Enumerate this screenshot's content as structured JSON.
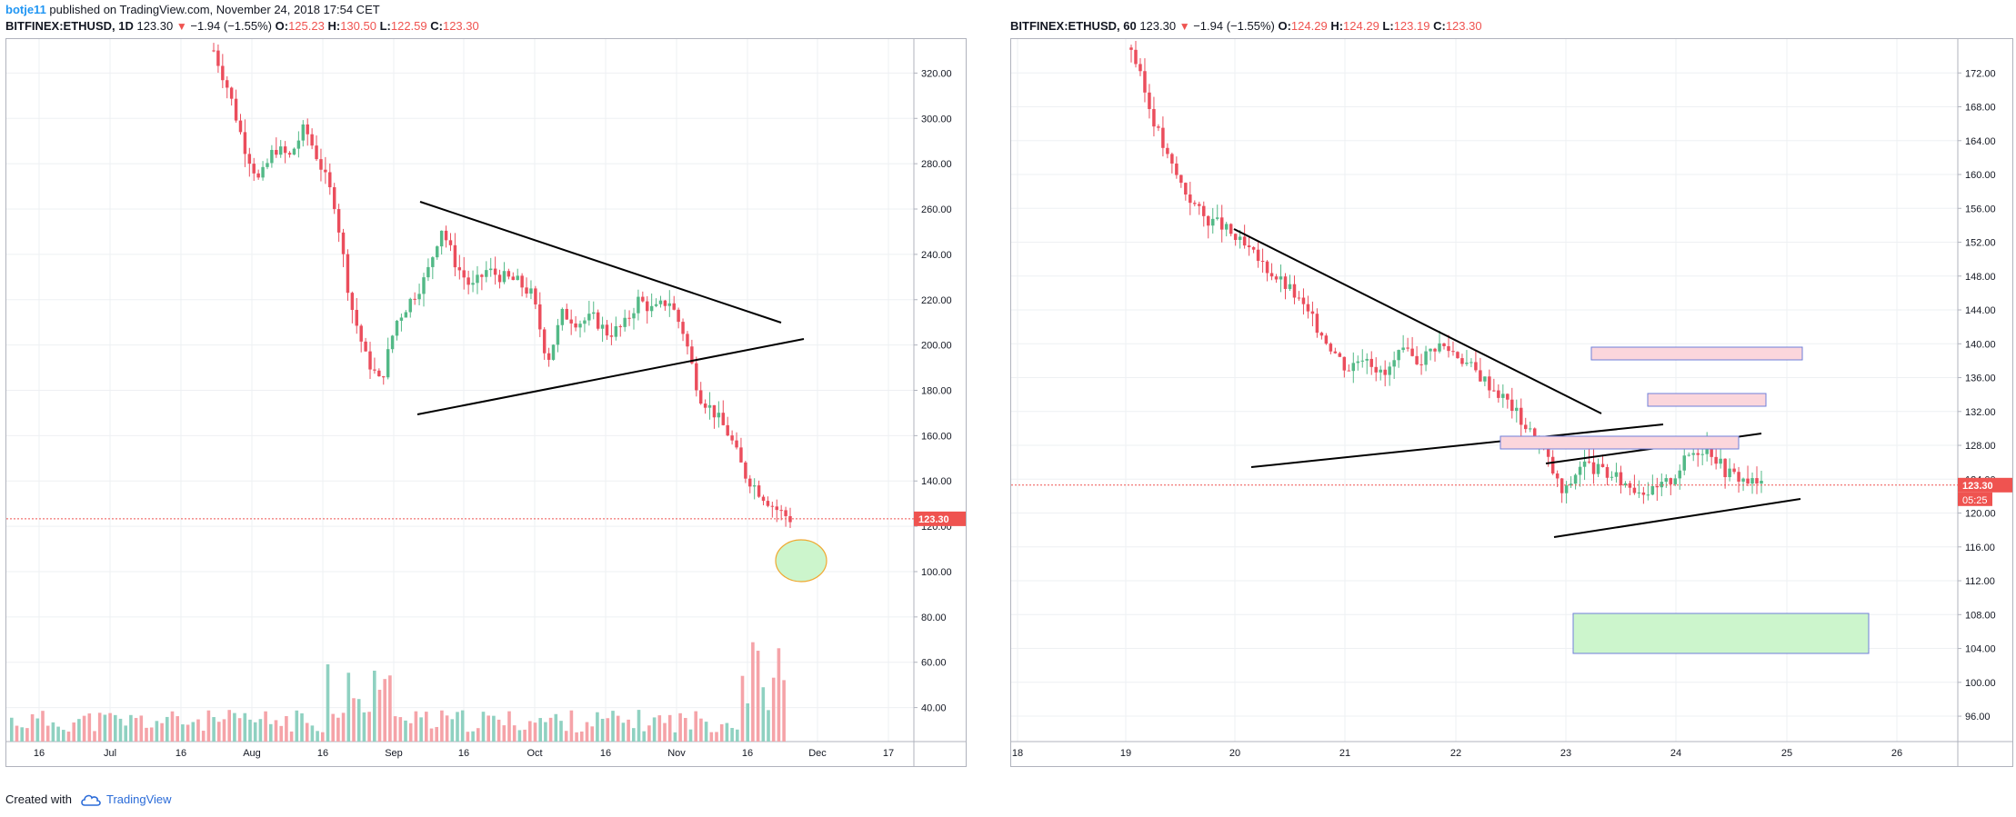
{
  "header": {
    "user": "botje11",
    "published": "published on TradingView.com, November 24, 2018 17:54 CET"
  },
  "footer": {
    "created_with": "Created with",
    "brand": "TradingView"
  },
  "colors": {
    "up": "#53b987",
    "down": "#eb4d5c",
    "vol_up": "#8fd1c1",
    "vol_down": "#f5a3a8",
    "line": "#000000",
    "price_line": "#ef5350",
    "grid": "#eef0f3"
  },
  "charts": [
    {
      "id": "daily",
      "symbol": "BITFINEX:ETHUSD, 1D",
      "last": "123.30",
      "change": "−1.94 (−1.55%)",
      "open": "125.23",
      "high": "130.50",
      "low": "122.59",
      "close": "123.30",
      "price_label": "123.30",
      "y_ticks": [
        "320.00",
        "300.00",
        "280.00",
        "260.00",
        "240.00",
        "220.00",
        "200.00",
        "180.00",
        "160.00",
        "140.00",
        "120.00",
        "100.00",
        "80.00",
        "60.00",
        "40.00"
      ],
      "x_ticks": [
        "16",
        "Jul",
        "16",
        "Aug",
        "16",
        "Sep",
        "16",
        "Oct",
        "16",
        "Nov",
        "16",
        "Dec",
        "17"
      ]
    },
    {
      "id": "hourly",
      "symbol": "BITFINEX:ETHUSD, 60",
      "last": "123.30",
      "change": "−1.94 (−1.55%)",
      "open": "124.29",
      "high": "124.29",
      "low": "123.19",
      "close": "123.30",
      "price_label": "123.30",
      "countdown": "05:25",
      "y_ticks": [
        "172.00",
        "168.00",
        "164.00",
        "160.00",
        "156.00",
        "152.00",
        "148.00",
        "144.00",
        "140.00",
        "136.00",
        "132.00",
        "128.00",
        "124.00",
        "120.00",
        "116.00",
        "112.00",
        "108.00",
        "104.00",
        "100.00",
        "96.00"
      ],
      "x_ticks": [
        "18",
        "19",
        "20",
        "21",
        "22",
        "23",
        "24",
        "25",
        "26"
      ]
    }
  ],
  "chart_data": [
    {
      "type": "line",
      "title": "BITFINEX:ETHUSD, 1D",
      "ylim": [
        25,
        335
      ],
      "series": [
        {
          "values": [
            330,
            312,
            288,
            272,
            287,
            283,
            296,
            280,
            262,
            219,
            195,
            183,
            210,
            220,
            230,
            252,
            235,
            225,
            233,
            230,
            228,
            222,
            193,
            214,
            210,
            212,
            205,
            208,
            220,
            215,
            220,
            205,
            178,
            170,
            160,
            143,
            135,
            128,
            123.3
          ]
        }
      ]
    },
    {
      "type": "line",
      "title": "BITFINEX:ETHUSD, 60",
      "ylim": [
        93,
        176
      ],
      "series": [
        {
          "values": [
            175,
            168,
            162,
            158,
            155,
            154,
            152,
            150,
            148,
            146,
            143,
            140,
            137,
            139,
            136,
            139,
            138,
            140,
            139,
            137,
            135,
            133,
            130,
            127,
            122,
            126,
            125,
            124,
            123,
            122.5,
            124,
            127,
            128,
            125,
            124,
            123.3
          ]
        }
      ]
    }
  ]
}
